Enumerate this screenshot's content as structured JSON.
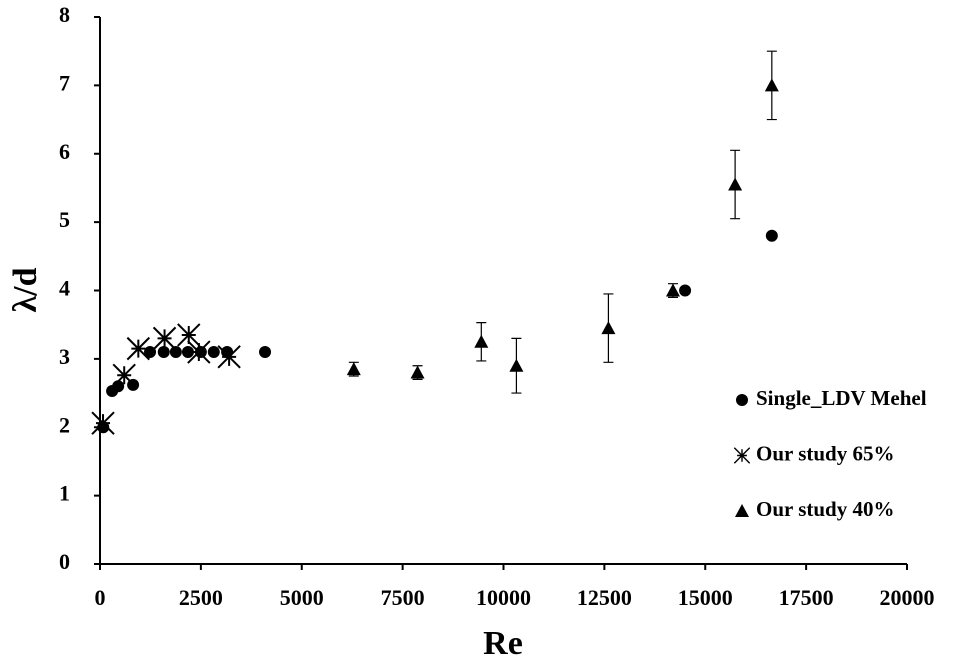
{
  "chart_data": {
    "type": "scatter",
    "x_label": "Re",
    "y_label": "λ/d",
    "xlim": [
      0,
      20000
    ],
    "xticks": [
      0,
      2500,
      5000,
      7500,
      10000,
      12500,
      15000,
      17500,
      20000
    ],
    "ylim": [
      0,
      8
    ],
    "yticks": [
      0,
      1,
      2,
      3,
      4,
      5,
      6,
      7,
      8
    ],
    "grid": false,
    "legend": "right",
    "series": [
      {
        "name": "Single_LDV Mehel",
        "marker": "circle",
        "color": "#000000",
        "x": [
          80,
          300,
          450,
          820,
          1240,
          1580,
          1880,
          2180,
          2500,
          2820,
          3150,
          4090,
          14500,
          16650
        ],
        "y": [
          2.0,
          2.53,
          2.6,
          2.62,
          3.1,
          3.1,
          3.1,
          3.1,
          3.1,
          3.1,
          3.1,
          3.1,
          4.0,
          4.8
        ]
      },
      {
        "name": "Our study 65%",
        "marker": "star",
        "color": "#000000",
        "x": [
          75,
          600,
          950,
          1600,
          2200,
          2450,
          3200
        ],
        "y": [
          2.06,
          2.76,
          3.15,
          3.3,
          3.35,
          3.1,
          3.03
        ]
      },
      {
        "name": "Our study 40%",
        "marker": "triangle",
        "color": "#000000",
        "x": [
          6290,
          7870,
          9450,
          10320,
          12600,
          14200,
          15740,
          16650
        ],
        "y": [
          2.85,
          2.8,
          3.25,
          2.9,
          3.45,
          4.0,
          5.55,
          7.0
        ],
        "errors": [
          0.1,
          0.1,
          0.28,
          0.4,
          0.5,
          0.1,
          0.5,
          0.5
        ]
      }
    ]
  }
}
